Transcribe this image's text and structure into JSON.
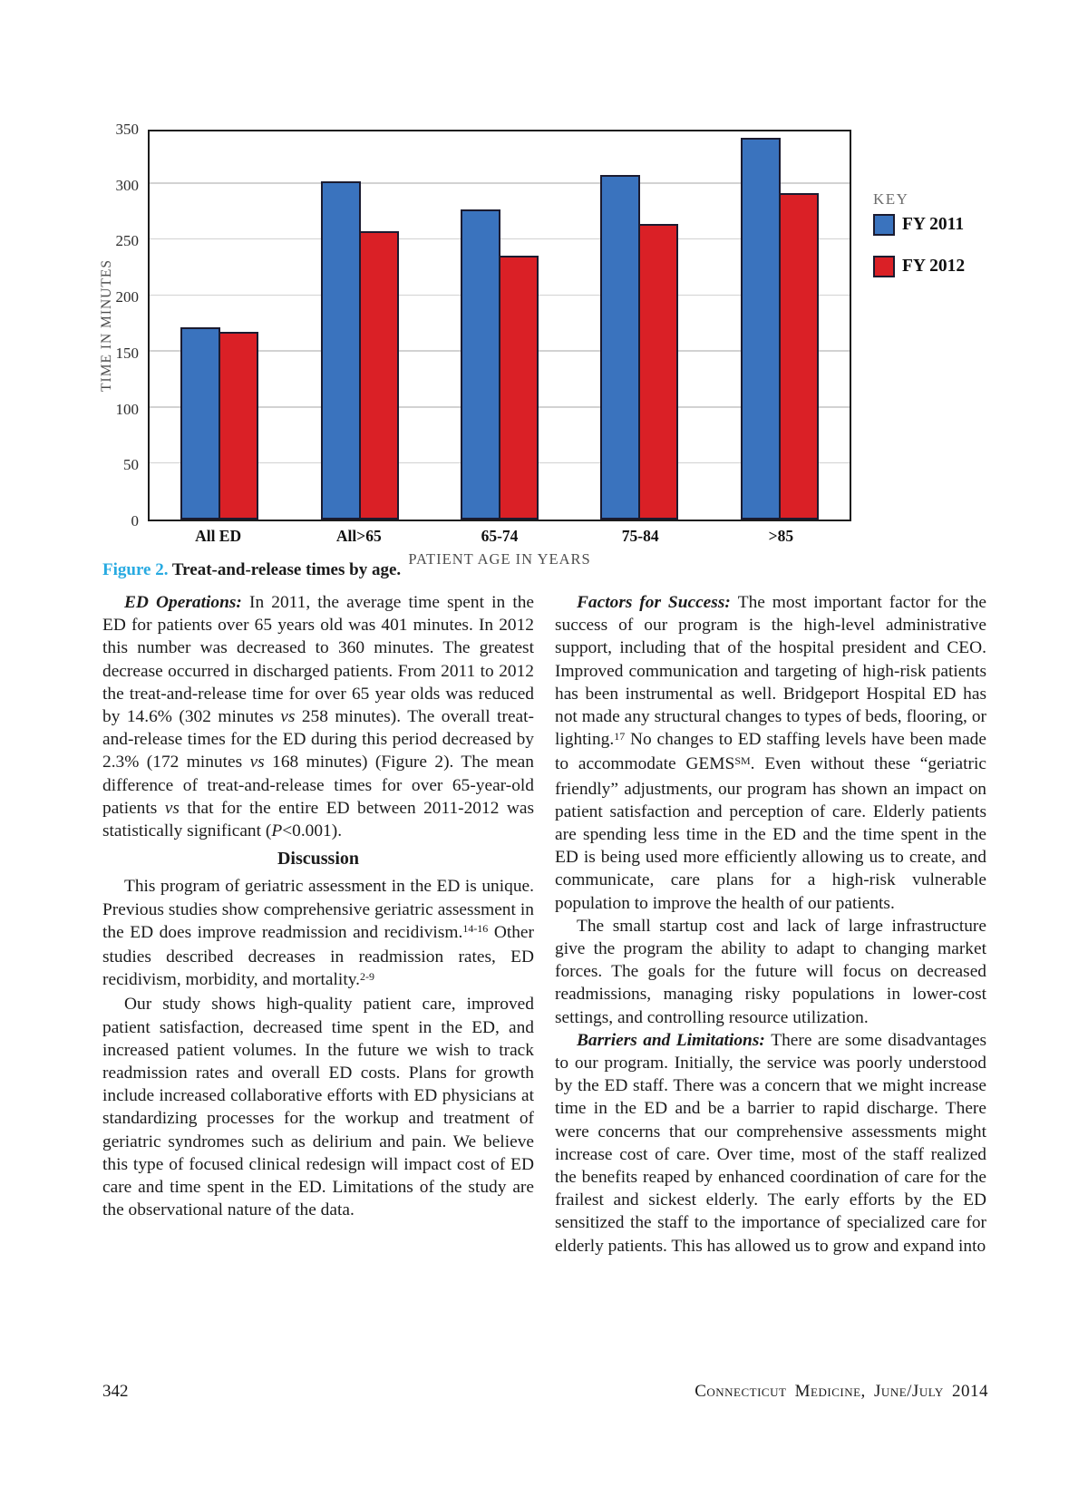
{
  "colors": {
    "figure_label": "#27aae1",
    "fy2011_blue": "#3a73be",
    "fy2012_red": "#da2026",
    "bar_outline": "#1b1b30"
  },
  "chart_data": {
    "type": "bar",
    "title": "",
    "categories": [
      "All ED",
      "All>65",
      "65-74",
      "75-84",
      ">85"
    ],
    "series": [
      {
        "name": "FY 2011",
        "color": "#3a73be",
        "values": [
          172,
          302,
          277,
          308,
          341
        ]
      },
      {
        "name": "FY 2012",
        "color": "#da2026",
        "values": [
          168,
          258,
          236,
          264,
          292
        ]
      }
    ],
    "xlabel": "PATIENT AGE IN YEARS",
    "ylabel": "TIME IN MINUTES",
    "ylim": [
      0,
      350
    ],
    "ytick_step": 50,
    "grid": true,
    "legend_title": "KEY",
    "legend_position": "right"
  },
  "figure": {
    "caption_label": "Figure 2.",
    "caption_text": "Treat-and-release times by age."
  },
  "article": {
    "left_column": [
      {
        "type": "para",
        "segments": [
          {
            "style": "lead",
            "text": "ED Operations: "
          },
          {
            "style": "normal",
            "text": "In 2011, the average time spent in the ED for patients over 65 years old was 401 minutes. In 2012 this number was decreased to 360 minutes. The greatest decrease occurred in discharged patients. From 2011 to 2012 the treat-and-release time for over 65 year olds was reduced by 14.6% (302 minutes "
          },
          {
            "style": "italic",
            "text": "vs"
          },
          {
            "style": "normal",
            "text": " 258 minutes). The overall treat-and-release times for the ED during this period decreased by 2.3% (172 minutes "
          },
          {
            "style": "italic",
            "text": "vs"
          },
          {
            "style": "normal",
            "text": " 168 minutes) (Figure 2). The mean difference of treat-and-release times for over 65-year-old patients "
          },
          {
            "style": "italic",
            "text": "vs"
          },
          {
            "style": "normal",
            "text": " that for the entire ED between 2011-2012 was statistically significant ("
          },
          {
            "style": "italic",
            "text": "P"
          },
          {
            "style": "normal",
            "text": "<0.001)."
          }
        ]
      },
      {
        "type": "heading",
        "text": "Discussion"
      },
      {
        "type": "para",
        "segments": [
          {
            "style": "normal",
            "text": "This program of geriatric assessment in the ED is unique. Previous studies show comprehensive geriatric assessment in the ED does improve readmission and recidivism."
          },
          {
            "style": "sup",
            "text": "14-16"
          },
          {
            "style": "normal",
            "text": " Other studies described decreases in readmission rates, ED recidivism, morbidity, and mortality."
          },
          {
            "style": "sup",
            "text": "2-9"
          }
        ]
      },
      {
        "type": "para",
        "segments": [
          {
            "style": "normal",
            "text": "Our study shows high-quality patient care, improved patient satisfaction, decreased time spent in the ED, and increased patient volumes. In the future we wish to track readmission rates and overall ED costs. Plans for growth include increased collaborative efforts with ED physicians at standardizing processes for the workup and treatment of geriatric syndromes such as delirium and pain. We believe this type of focused clinical redesign will impact cost of ED care and time spent in the ED. Limitations of the study are the observational nature of the data."
          }
        ]
      }
    ],
    "right_column": [
      {
        "type": "para",
        "segments": [
          {
            "style": "lead",
            "text": "Factors for Success: "
          },
          {
            "style": "normal",
            "text": "The most important factor for the success of our program is the high-level administrative support, including that of the hospital president and CEO. Improved communication and targeting of high-risk patients has been instrumental as well. Bridgeport Hospital ED has not made any structural changes to types of beds, flooring, or lighting."
          },
          {
            "style": "sup",
            "text": "17"
          },
          {
            "style": "normal",
            "text": " No changes to ED staffing levels have been made to accommodate GEMS"
          },
          {
            "style": "sup",
            "text": "SM"
          },
          {
            "style": "normal",
            "text": ". Even without these “geriatric friendly” adjustments, our program has shown an impact on patient satisfaction and perception of care. Elderly patients are spending less time in the ED and the time spent in the ED is being used more efficiently allowing us to create, and communicate, care plans for a high-risk vulnerable population to improve the health of our patients."
          }
        ]
      },
      {
        "type": "para",
        "segments": [
          {
            "style": "normal",
            "text": "The small startup cost and lack of large infrastructure give the program the ability to adapt to changing market forces. The goals for the future will focus on decreased readmissions, managing risky populations in lower-cost settings, and controlling resource utilization."
          }
        ]
      },
      {
        "type": "para",
        "segments": [
          {
            "style": "lead",
            "text": "Barriers and Limitations: "
          },
          {
            "style": "normal",
            "text": "There are some disadvantages to our program. Initially, the service was poorly understood by the ED staff. There was a concern that we might increase time in the ED and be a barrier to rapid discharge. There were concerns that our comprehensive assessments might increase cost of care. Over time, most of the staff realized the benefits reaped by enhanced coordination of care for the frailest and sickest elderly. The early efforts by the ED sensitized the staff to the importance of specialized care for elderly patients. This has allowed us to grow and expand into"
          }
        ]
      }
    ]
  },
  "footer": {
    "page_number": "342",
    "journal": "Connecticut Medicine, June/July 2014"
  }
}
